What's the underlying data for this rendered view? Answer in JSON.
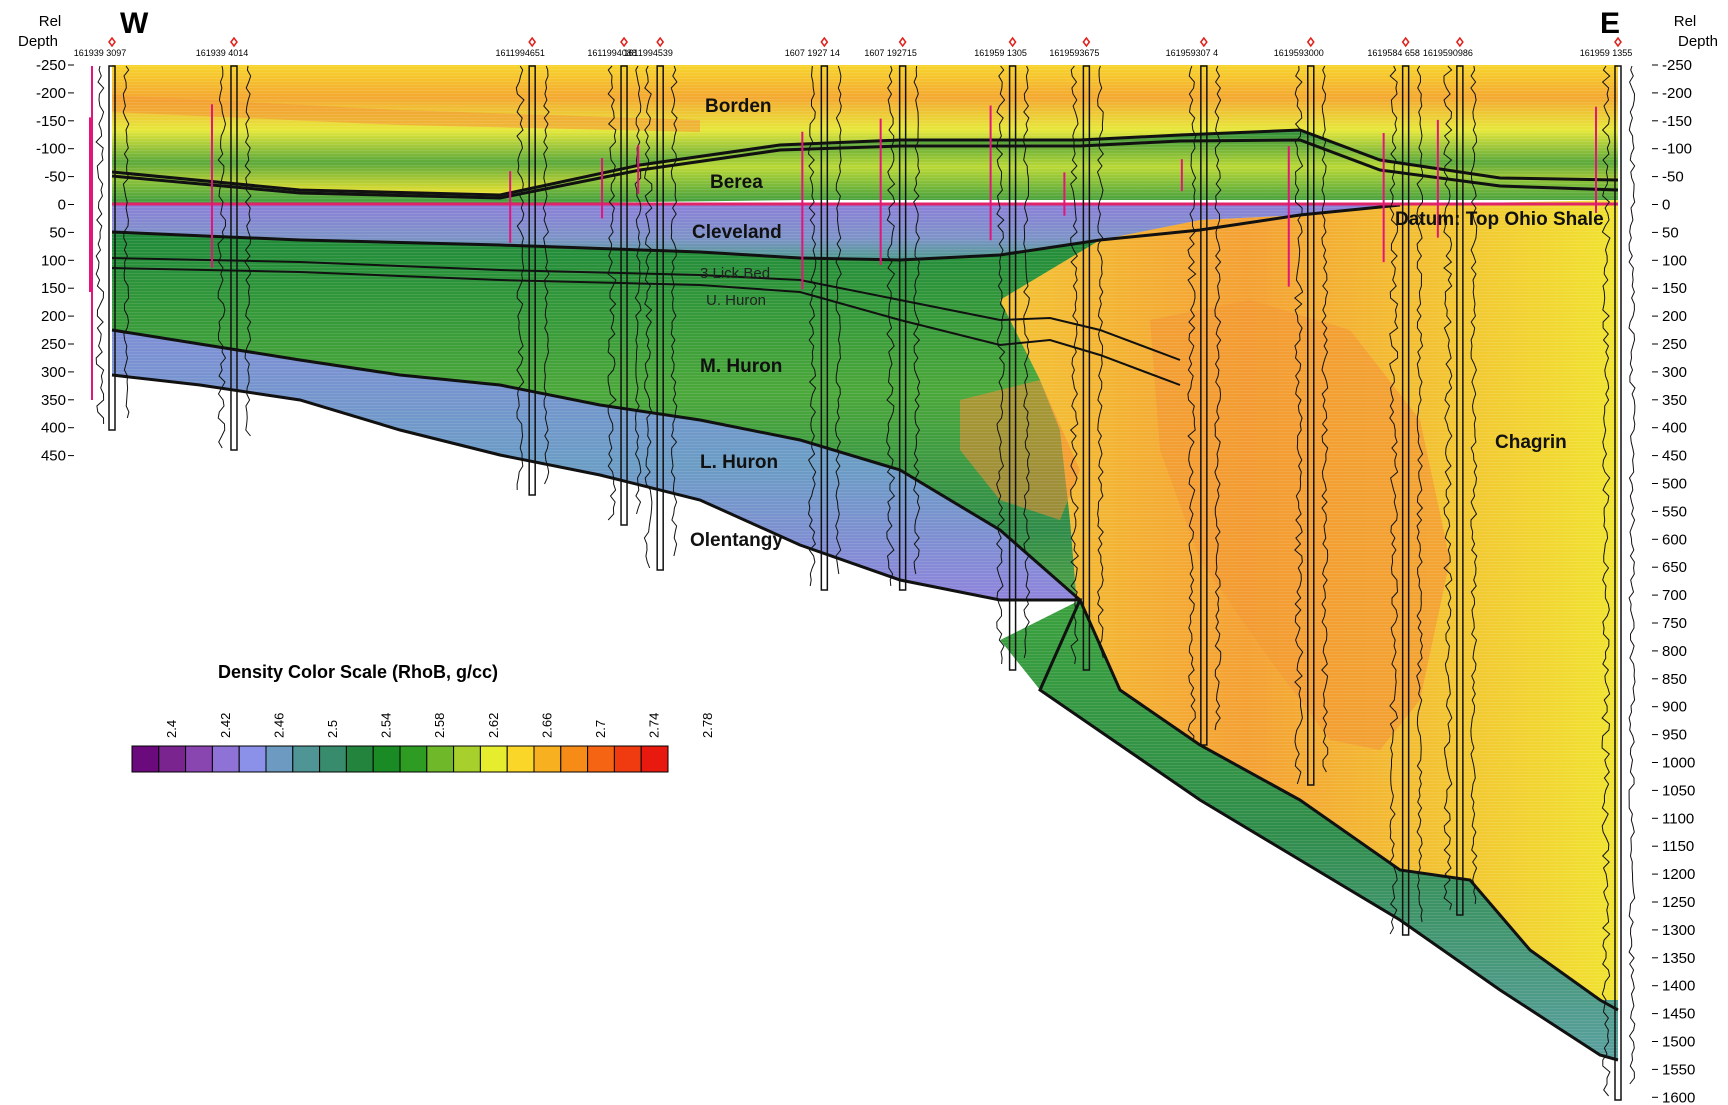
{
  "header": {
    "west": "W",
    "east": "E",
    "axis_title_top": "Rel",
    "axis_title_bottom": "Depth"
  },
  "axis": {
    "left_ticks": [
      "-250",
      "-200",
      "-150",
      "-100",
      "-50",
      "0",
      "50",
      "100",
      "150",
      "200",
      "250",
      "300",
      "350",
      "400",
      "450"
    ],
    "right_ticks": [
      "-250",
      "-200",
      "-150",
      "-100",
      "-50",
      "0",
      "50",
      "100",
      "150",
      "200",
      "250",
      "300",
      "350",
      "400",
      "450",
      "500",
      "550",
      "600",
      "650",
      "700",
      "750",
      "800",
      "850",
      "900",
      "950",
      "1000",
      "1050",
      "1100",
      "1150",
      "1200",
      "1250",
      "1300",
      "1350",
      "1400",
      "1450",
      "1500",
      "1550",
      "1600"
    ]
  },
  "wells": [
    {
      "id": "161939 3097",
      "x": 0.0
    },
    {
      "id": "161939 4014",
      "x": 8.1
    },
    {
      "id": "1611994651",
      "x": 27.9
    },
    {
      "id": "1611994088",
      "x": 34.0
    },
    {
      "id": "1611994539",
      "x": 36.4
    },
    {
      "id": "1607 1927 14",
      "x": 47.3
    },
    {
      "id": "1607 192715",
      "x": 52.5
    },
    {
      "id": "161959 1305",
      "x": 59.8
    },
    {
      "id": "1619593675",
      "x": 64.7
    },
    {
      "id": "161959307 4",
      "x": 72.5
    },
    {
      "id": "1619593000",
      "x": 79.6
    },
    {
      "id": "1619584 658",
      "x": 85.9
    },
    {
      "id": "1619590986",
      "x": 89.5
    },
    {
      "id": "161959 1355",
      "x": 100.0
    }
  ],
  "formations": {
    "borden": "Borden",
    "berea": "Berea",
    "cleveland": "Cleveland",
    "three_lick": "3 Lick Bed",
    "u_huron": "U. Huron",
    "m_huron": "M. Huron",
    "l_huron": "L. Huron",
    "olentangy": "Olentangy",
    "chagrin": "Chagrin",
    "datum": "Datum: Top Ohio Shale"
  },
  "colorbar": {
    "title": "Density Color Scale (RhoB, g/cc)",
    "ticks": [
      "2.4",
      "2.42",
      "2.46",
      "2.5",
      "2.54",
      "2.58",
      "2.62",
      "2.66",
      "2.7",
      "2.74",
      "2.78"
    ],
    "colors": [
      "#6b0a7c",
      "#7a2490",
      "#8a46b0",
      "#8f72d6",
      "#8b90e8",
      "#6c9ac0",
      "#4f9596",
      "#388b6c",
      "#23843e",
      "#1a8b24",
      "#2e9b22",
      "#6fb82a",
      "#a8d02c",
      "#e6ec2e",
      "#f9d628",
      "#f7b020",
      "#f68b18",
      "#f56412",
      "#f03a10",
      "#e81a10"
    ]
  },
  "colors": {
    "pink_log": "#e3157a",
    "datum_line": "#e0246a",
    "purple_zone": "#8f84dc",
    "green_zone": "#2d8f3a",
    "yellow_zone": "#f2e02c",
    "orange_zone": "#f3a533"
  }
}
